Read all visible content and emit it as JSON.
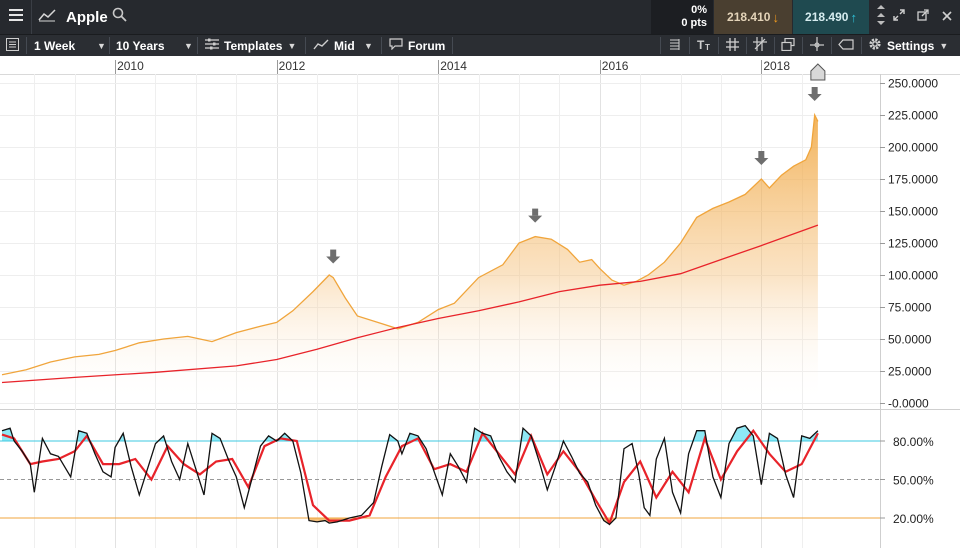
{
  "instrument": {
    "name": "Apple"
  },
  "quote": {
    "change_pct": "0%",
    "change_pts": "0 pts",
    "sell": "218.410",
    "buy": "218.490"
  },
  "toolbar": {
    "interval": "1 Week",
    "range": "10 Years",
    "templates": "Templates",
    "price_type": "Mid",
    "forum": "Forum",
    "settings": "Settings"
  },
  "colors": {
    "price_line": "#f0a53c",
    "moving_average": "#e8232a",
    "stoch_k": "#111111",
    "stoch_d": "#e8232a",
    "overbought_fill": "#8ee8f5",
    "oversold_fill": "#f5c07a",
    "overbought_line": "#3cc8e0",
    "oversold_line": "#f0a53c"
  },
  "chart_data": [
    {
      "type": "area",
      "x_ticks": [
        "2010",
        "2012",
        "2014",
        "2016",
        "2018"
      ],
      "y_ticks": [
        "250.0000",
        "225.0000",
        "200.0000",
        "175.0000",
        "150.0000",
        "125.0000",
        "100.0000",
        "75.0000",
        "50.0000",
        "25.0000",
        "-0.0000"
      ],
      "ylim": [
        0,
        250
      ],
      "xlim": [
        2008.6,
        2018.85
      ],
      "series": [
        {
          "role": "price",
          "x": [
            2008.6,
            2008.9,
            2009.2,
            2009.5,
            2009.8,
            2010.0,
            2010.3,
            2010.6,
            2010.9,
            2011.2,
            2011.5,
            2011.8,
            2012.0,
            2012.2,
            2012.45,
            2012.65,
            2012.7,
            2012.85,
            2013.0,
            2013.3,
            2013.5,
            2013.75,
            2014.0,
            2014.2,
            2014.5,
            2014.8,
            2015.0,
            2015.2,
            2015.4,
            2015.6,
            2015.75,
            2015.9,
            2016.0,
            2016.15,
            2016.3,
            2016.45,
            2016.6,
            2016.8,
            2017.0,
            2017.2,
            2017.4,
            2017.6,
            2017.8,
            2018.0,
            2018.1,
            2018.25,
            2018.4,
            2018.55,
            2018.62,
            2018.66,
            2018.7
          ],
          "y": [
            22,
            26,
            32,
            36,
            38,
            41,
            47,
            50,
            52,
            48,
            55,
            60,
            63,
            72,
            87,
            100,
            98,
            82,
            68,
            62,
            58,
            63,
            73,
            78,
            98,
            108,
            125,
            130,
            128,
            120,
            110,
            112,
            105,
            96,
            92,
            95,
            100,
            110,
            125,
            145,
            152,
            157,
            163,
            175,
            168,
            178,
            185,
            190,
            200,
            225,
            220
          ]
        },
        {
          "role": "moving-average",
          "x": [
            2008.6,
            2009.5,
            2010.5,
            2011.5,
            2012.0,
            2012.5,
            2013.0,
            2013.5,
            2014.0,
            2014.5,
            2015.0,
            2015.5,
            2016.0,
            2016.5,
            2017.0,
            2017.5,
            2018.0,
            2018.7
          ],
          "y": [
            16,
            20,
            24,
            29,
            34,
            42,
            51,
            59,
            66,
            72,
            79,
            87,
            92,
            95,
            101,
            112,
            123,
            139
          ]
        }
      ],
      "markers": [
        {
          "type": "arrow-down",
          "x": 2012.7
        },
        {
          "type": "arrow-down",
          "x": 2015.2
        },
        {
          "type": "arrow-down",
          "x": 2018.0
        },
        {
          "type": "arrow-down",
          "x": 2018.66
        },
        {
          "type": "house",
          "x": 2018.7
        }
      ]
    },
    {
      "type": "line",
      "y_ticks": [
        "80.00%",
        "20.00%",
        "50.00%"
      ],
      "ylim": [
        10,
        100
      ],
      "xlim": [
        2008.6,
        2018.85
      ],
      "levels": {
        "overbought": 80,
        "oversold": 20,
        "mid": 50
      },
      "series": [
        {
          "role": "stochastic-%K",
          "x": [
            2008.6,
            2008.7,
            2008.75,
            2008.85,
            2008.95,
            2009.0,
            2009.1,
            2009.2,
            2009.3,
            2009.45,
            2009.55,
            2009.65,
            2009.75,
            2009.85,
            2009.95,
            2010.0,
            2010.1,
            2010.2,
            2010.3,
            2010.4,
            2010.5,
            2010.6,
            2010.7,
            2010.8,
            2010.9,
            2011.0,
            2011.1,
            2011.2,
            2011.3,
            2011.4,
            2011.5,
            2011.6,
            2011.7,
            2011.8,
            2011.9,
            2012.0,
            2012.1,
            2012.2,
            2012.3,
            2012.4,
            2012.5,
            2012.6,
            2012.65,
            2012.75,
            2012.9,
            2013.05,
            2013.2,
            2013.3,
            2013.4,
            2013.5,
            2013.55,
            2013.65,
            2013.75,
            2013.85,
            2013.95,
            2014.05,
            2014.15,
            2014.25,
            2014.35,
            2014.45,
            2014.55,
            2014.65,
            2014.75,
            2014.85,
            2014.95,
            2015.05,
            2015.15,
            2015.25,
            2015.35,
            2015.45,
            2015.55,
            2015.65,
            2015.75,
            2015.85,
            2015.95,
            2016.05,
            2016.12,
            2016.2,
            2016.3,
            2016.4,
            2016.48,
            2016.55,
            2016.62,
            2016.7,
            2016.8,
            2016.9,
            2017.0,
            2017.1,
            2017.2,
            2017.3,
            2017.4,
            2017.5,
            2017.6,
            2017.7,
            2017.8,
            2017.9,
            2018.0,
            2018.1,
            2018.2,
            2018.3,
            2018.4,
            2018.5,
            2018.6,
            2018.7
          ],
          "y": [
            88,
            90,
            80,
            72,
            62,
            40,
            82,
            70,
            68,
            52,
            88,
            86,
            70,
            56,
            52,
            75,
            86,
            60,
            38,
            58,
            78,
            84,
            64,
            50,
            78,
            58,
            38,
            86,
            82,
            66,
            52,
            28,
            52,
            76,
            84,
            80,
            86,
            80,
            55,
            18,
            17,
            18,
            16,
            17,
            20,
            22,
            32,
            60,
            85,
            80,
            70,
            86,
            84,
            74,
            56,
            38,
            70,
            60,
            48,
            90,
            86,
            84,
            68,
            56,
            48,
            90,
            84,
            64,
            42,
            60,
            80,
            68,
            55,
            48,
            30,
            18,
            15,
            20,
            74,
            78,
            55,
            28,
            22,
            66,
            82,
            40,
            24,
            70,
            88,
            88,
            52,
            36,
            78,
            90,
            92,
            84,
            46,
            86,
            82,
            54,
            36,
            84,
            82,
            88
          ]
        },
        {
          "role": "stochastic-%D",
          "x": [
            2008.6,
            2008.75,
            2008.95,
            2009.1,
            2009.3,
            2009.5,
            2009.65,
            2009.85,
            2010.05,
            2010.25,
            2010.45,
            2010.65,
            2010.85,
            2011.05,
            2011.25,
            2011.45,
            2011.65,
            2011.85,
            2012.05,
            2012.25,
            2012.45,
            2012.65,
            2012.9,
            2013.15,
            2013.35,
            2013.55,
            2013.75,
            2013.95,
            2014.15,
            2014.35,
            2014.55,
            2014.75,
            2014.95,
            2015.15,
            2015.35,
            2015.55,
            2015.75,
            2015.95,
            2016.12,
            2016.3,
            2016.5,
            2016.7,
            2016.9,
            2017.1,
            2017.3,
            2017.5,
            2017.7,
            2017.9,
            2018.1,
            2018.3,
            2018.5,
            2018.7
          ],
          "y": [
            85,
            82,
            62,
            64,
            66,
            72,
            84,
            62,
            62,
            66,
            50,
            76,
            62,
            54,
            64,
            66,
            44,
            76,
            82,
            80,
            30,
            18,
            18,
            22,
            52,
            76,
            82,
            58,
            62,
            56,
            86,
            70,
            54,
            84,
            54,
            72,
            56,
            34,
            16,
            48,
            64,
            36,
            56,
            40,
            82,
            50,
            72,
            88,
            70,
            56,
            62,
            86
          ]
        }
      ]
    }
  ]
}
